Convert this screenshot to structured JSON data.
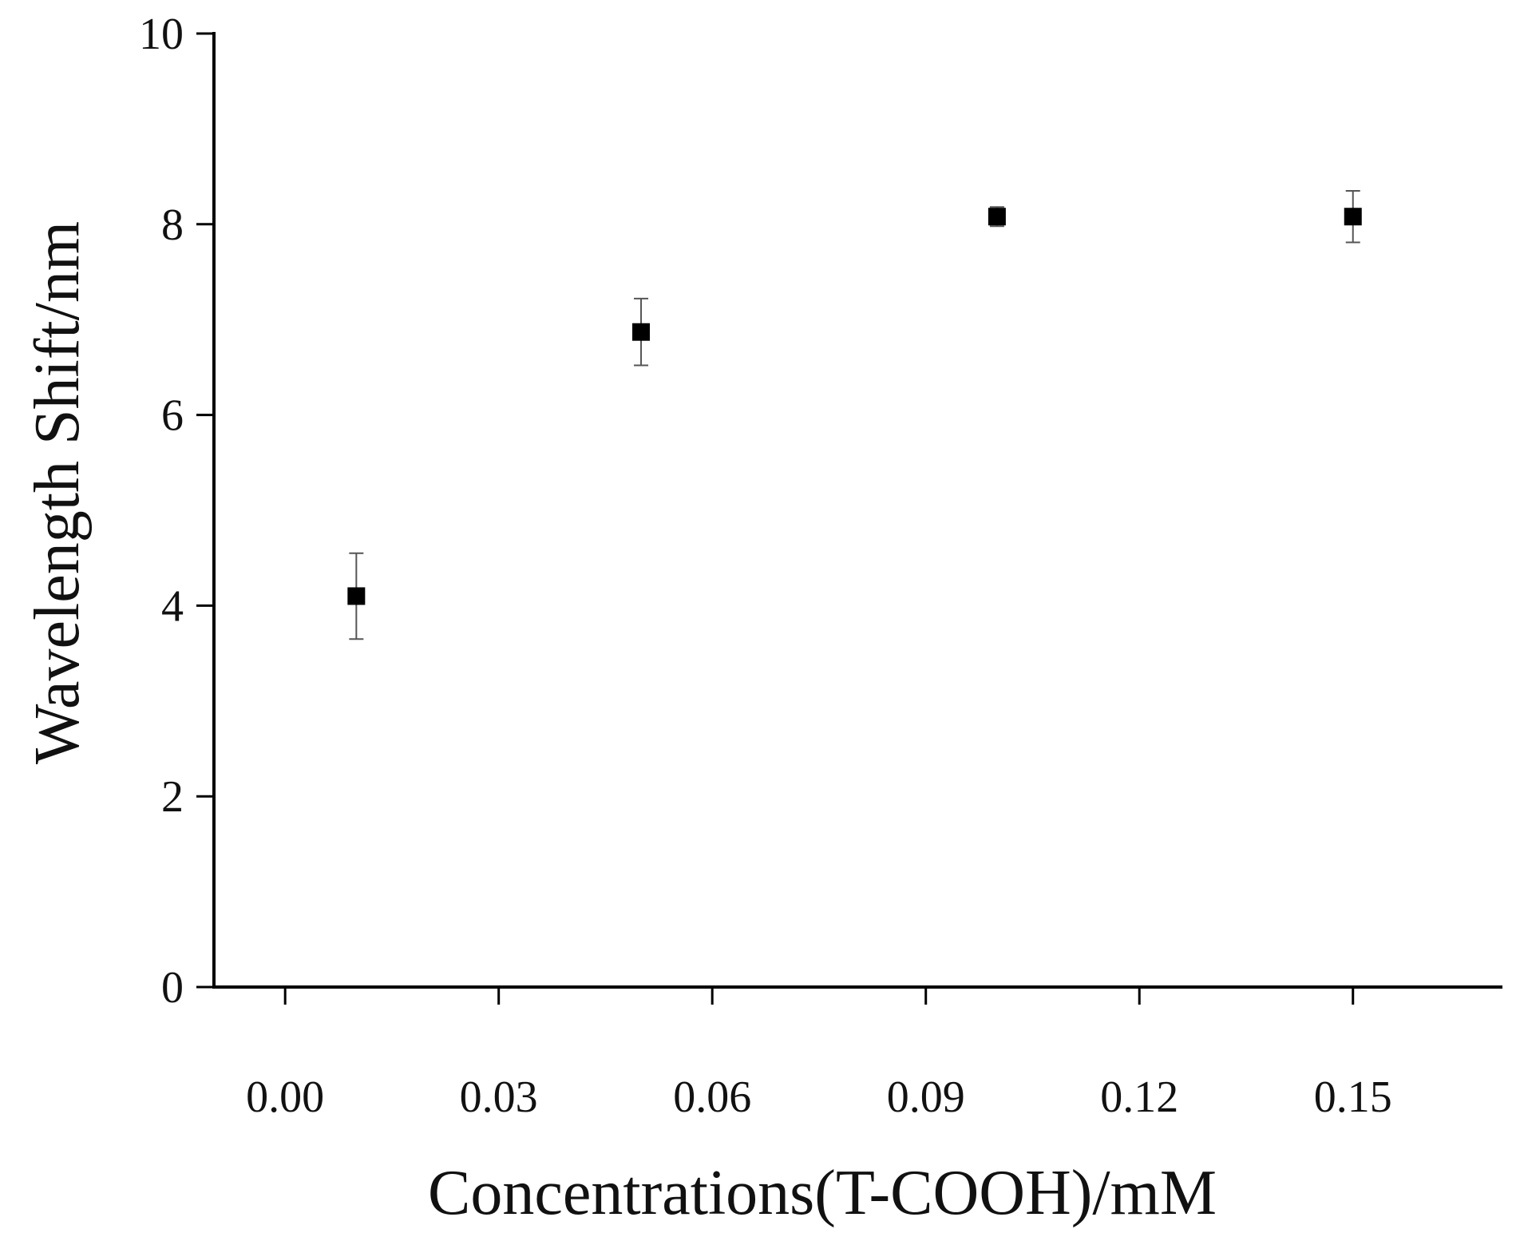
{
  "chart_data": {
    "type": "scatter",
    "title": "",
    "xlabel": "Concentrations(T-COOH)/mM",
    "ylabel": "Wavelength Shift/nm",
    "xlim": [
      -0.01,
      0.171
    ],
    "ylim": [
      0,
      10
    ],
    "x_ticks": [
      "0.00",
      "0.03",
      "0.06",
      "0.09",
      "0.12",
      "0.15"
    ],
    "y_ticks": [
      "0",
      "2",
      "4",
      "6",
      "8",
      "10"
    ],
    "grid": false,
    "legend": "none",
    "marker": "filled-square",
    "colors": {
      "marker": "#000000",
      "axis": "#000000",
      "errorbar": "#555555"
    },
    "series": [
      {
        "points": [
          {
            "x": 0.01,
            "y": 4.1,
            "err": 0.45
          },
          {
            "x": 0.05,
            "y": 6.87,
            "err": 0.35
          },
          {
            "x": 0.1,
            "y": 8.08,
            "err": 0.1
          },
          {
            "x": 0.15,
            "y": 8.08,
            "err": 0.27
          }
        ]
      }
    ]
  }
}
